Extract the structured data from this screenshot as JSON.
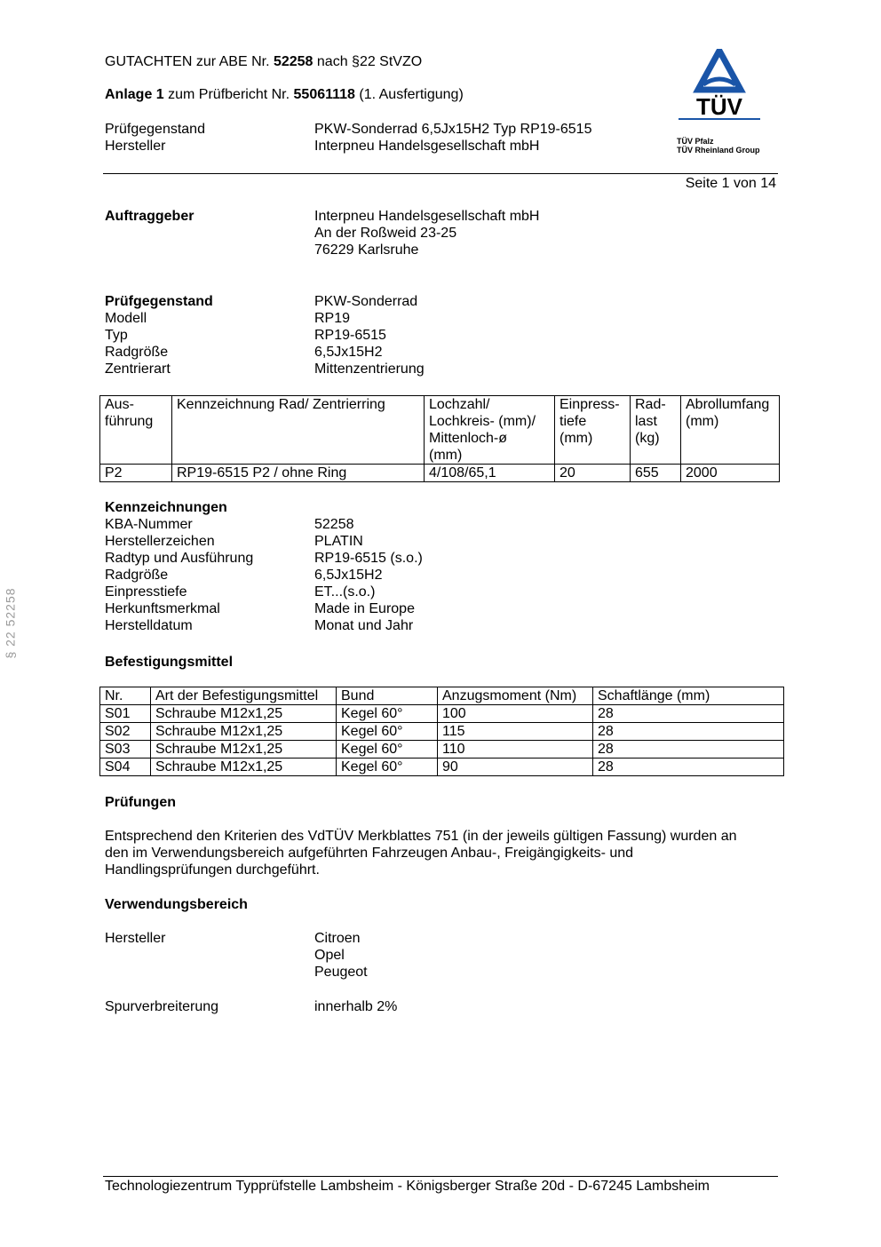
{
  "header": {
    "line1_prefix": "GUTACHTEN zur ABE Nr. ",
    "abe_nr": "52258",
    "line1_suffix": " nach §22 StVZO",
    "anlage": "Anlage 1",
    "line2_mid": " zum Prüfbericht Nr. ",
    "pruefbericht_nr": "55061118",
    "line2_suffix": " (1. Ausfertigung)",
    "rows": [
      {
        "label": "Prüfgegenstand",
        "value": "PKW-Sonderrad 6,5Jx15H2 Typ RP19-6515"
      },
      {
        "label": "Hersteller",
        "value": "Interpneu Handelsgesellschaft mbH"
      }
    ],
    "page": "Seite 1 von 14"
  },
  "logo": {
    "text": "TÜV",
    "line1": "TÜV Pfalz",
    "line2": "TÜV Rheinland Group",
    "color": "#1a55a8"
  },
  "side_text": "§ 22  52258",
  "auftraggeber": {
    "label": "Auftraggeber",
    "lines": [
      "Interpneu Handelsgesellschaft mbH",
      "An der Roßweid 23-25",
      "76229 Karlsruhe"
    ]
  },
  "pruefgegenstand": {
    "rows": [
      {
        "label": "Prüfgegenstand",
        "value": "PKW-Sonderrad"
      },
      {
        "label": "Modell",
        "value": "RP19"
      },
      {
        "label": "Typ",
        "value": "RP19-6515"
      },
      {
        "label": "Radgröße",
        "value": "6,5Jx15H2"
      },
      {
        "label": "Zentrierart",
        "value": "Mittenzentrierung"
      }
    ]
  },
  "wheel_table": {
    "headers": [
      "Aus-\nführung",
      "Kennzeichnung Rad/ Zentrierring",
      "Lochzahl/\nLochkreis- (mm)/\nMittenloch-ø\n(mm)",
      "Einpress-\ntiefe\n(mm)",
      "Rad-\nlast\n(kg)",
      "Abrollumfang\n(mm)"
    ],
    "rows": [
      [
        "P2",
        "RP19-6515 P2 / ohne Ring",
        "4/108/65,1",
        "20",
        "655",
        "2000"
      ]
    ]
  },
  "kennzeichnungen": {
    "title": "Kennzeichnungen",
    "rows": [
      {
        "label": "KBA-Nummer",
        "value": "52258"
      },
      {
        "label": "Herstellerzeichen",
        "value": "PLATIN"
      },
      {
        "label": "Radtyp und Ausführung",
        "value": "RP19-6515 (s.o.)"
      },
      {
        "label": "Radgröße",
        "value": "6,5Jx15H2"
      },
      {
        "label": "Einpresstiefe",
        "value": "ET...(s.o.)"
      },
      {
        "label": "Herkunftsmerkmal",
        "value": "Made in Europe"
      },
      {
        "label": "Herstelldatum",
        "value": "Monat und Jahr"
      }
    ]
  },
  "befestigung": {
    "title": "Befestigungsmittel",
    "headers": [
      "Nr.",
      "Art der Befestigungsmittel",
      "Bund",
      "Anzugsmoment (Nm)",
      "Schaftlänge (mm)"
    ],
    "rows": [
      [
        "S01",
        "Schraube M12x1,25",
        "Kegel 60°",
        "100",
        "28"
      ],
      [
        "S02",
        "Schraube M12x1,25",
        "Kegel 60°",
        "115",
        "28"
      ],
      [
        "S03",
        "Schraube M12x1,25",
        "Kegel 60°",
        "110",
        "28"
      ],
      [
        "S04",
        "Schraube M12x1,25",
        "Kegel 60°",
        "90",
        "28"
      ]
    ]
  },
  "pruefungen": {
    "title": "Prüfungen",
    "text": [
      "Entsprechend den Kriterien des VdTÜV Merkblattes 751 (in der jeweils gültigen Fassung) wurden an",
      "den im Verwendungsbereich aufgeführten Fahrzeugen Anbau-, Freigängigkeits- und",
      "Handlingsprüfungen durchgeführt."
    ]
  },
  "verwendung": {
    "title": "Verwendungsbereich",
    "hersteller_label": "Hersteller",
    "hersteller": [
      "Citroen",
      "Opel",
      "Peugeot"
    ],
    "spur_label": "Spurverbreiterung",
    "spur_value": "innerhalb 2%"
  },
  "footer": "Technologiezentrum Typprüfstelle Lambsheim - Königsberger Straße 20d - D-67245 Lambsheim"
}
